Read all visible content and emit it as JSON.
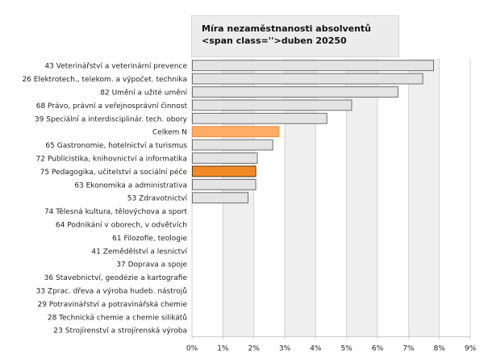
{
  "chart_data": {
    "type": "bar",
    "orientation": "horizontal",
    "title": "Míra nezaměstnanosti absolventů <span class=''>duben 20250",
    "categories": [
      "43 Veterinářství a veterinární prevence",
      "26 Elektrotech., telekom. a výpočet. technika",
      "82 Umění a užité umění",
      "68 Právo, právní a veřejnosprávní činnost",
      "39 Speciální a interdisciplinár. tech. obory",
      "Celkem N",
      "65 Gastronomie, hotelnictví a turismus",
      "72 Publicistika, knihovnictví a informatika",
      "75 Pedagogika, učitelství a sociální péče",
      "63 Ekonomika a administrativa",
      "53 Zdravotnictví",
      "74 Tělesná kultura, tělovýchova a sport",
      "64 Podnikání v oborech, v odvětvích",
      "61 Filozofie, teologie",
      "41 Zemědělství a lesnictví",
      "37 Doprava a spoje",
      "36 Stavebnictví, geodézie a kartografie",
      "33 Zprac. dřeva a výroba hudeb. nástrojů",
      "29 Potravinářství a potravinářská chemie",
      "28 Technická chemie a chemie silikátů",
      "23 Strojírenství a strojírenská výroba"
    ],
    "values": [
      7.8,
      7.45,
      6.65,
      5.15,
      4.35,
      2.8,
      2.6,
      2.1,
      2.05,
      2.05,
      1.8,
      0,
      0,
      0,
      0,
      0,
      0,
      0,
      0,
      0,
      0
    ],
    "xlim": [
      0,
      9
    ],
    "xticks": [
      "0%",
      "1%",
      "2%",
      "3%",
      "4%",
      "5%",
      "6%",
      "7%",
      "8%",
      "9%"
    ],
    "xlabel": "",
    "ylabel": "",
    "grid": true,
    "colors": {
      "default": "#e4e4e4",
      "default_stroke": "#6e6e6e",
      "highlight_total": "#ffad66",
      "highlight_total_stroke": "#ef8f3a",
      "highlight_selected": "#f28a24",
      "highlight_selected_stroke": "#5a3a14",
      "band_light": "#ffffff",
      "band_dark": "#efefef"
    },
    "highlights": {
      "Celkem N": "total",
      "75 Pedagogika, učitelství a sociální péče": "selected"
    }
  }
}
